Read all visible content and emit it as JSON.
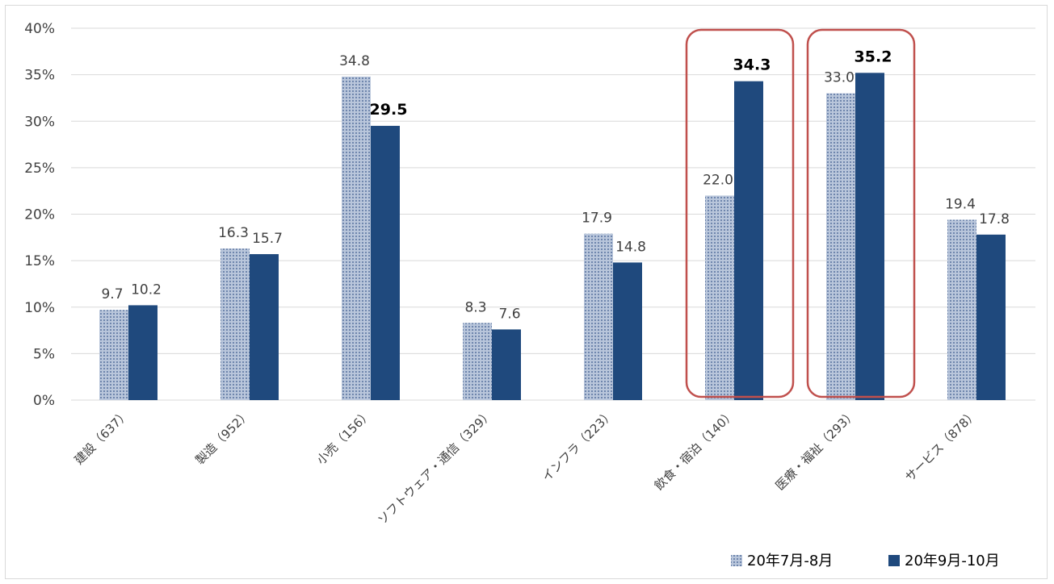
{
  "chart_data": {
    "type": "bar",
    "categories": [
      "建設（637）",
      "製造（952）",
      "小売（156）",
      "ソフトウェア・通信（329）",
      "インフラ（223）",
      "飲食・宿泊（140）",
      "医療・福祉（293）",
      "サービス（878）"
    ],
    "series": [
      {
        "name": "20年7月-8月",
        "values": [
          9.7,
          16.3,
          34.8,
          8.3,
          17.9,
          22.0,
          33.0,
          19.4
        ],
        "color": "#8fa3c4",
        "pattern": "dotted"
      },
      {
        "name": "20年9月-10月",
        "values": [
          10.2,
          15.7,
          29.5,
          7.6,
          14.8,
          34.3,
          35.2,
          17.8
        ],
        "color": "#1f497d"
      }
    ],
    "value_labels": [
      [
        "9.7",
        "16.3",
        "34.8",
        "8.3",
        "17.9",
        "22.0",
        "33.0",
        "19.4"
      ],
      [
        "10.2",
        "15.7",
        "29.5",
        "7.6",
        "14.8",
        "34.3",
        "35.2",
        "17.8"
      ]
    ],
    "bold_labels": [
      [],
      [
        2,
        5,
        6
      ]
    ],
    "highlighted_categories": [
      5,
      6
    ],
    "highlight_color": "#c0504d",
    "ylim": [
      0,
      40
    ],
    "yticks": [
      0,
      5,
      10,
      15,
      20,
      25,
      30,
      35,
      40
    ],
    "ytick_labels": [
      "0%",
      "5%",
      "10%",
      "15%",
      "20%",
      "25%",
      "30%",
      "35%",
      "40%"
    ],
    "grid": true,
    "legend": "bottom-right",
    "title": "",
    "xlabel": "",
    "ylabel": ""
  }
}
